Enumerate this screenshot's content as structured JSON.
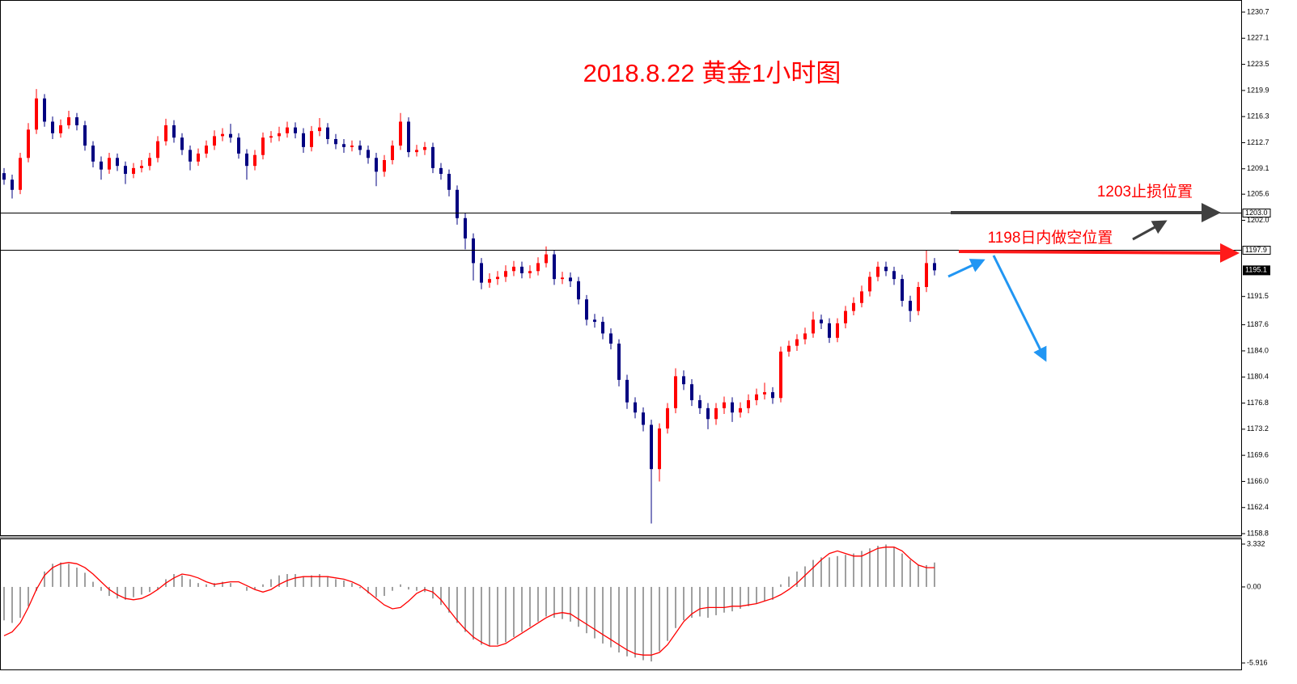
{
  "chart_data": [
    {
      "type": "candlestick",
      "title": "2018.8.22  黄金1小时图",
      "annotations": [
        "1203止损位置",
        "1198日内做空位置"
      ],
      "up_color": "#ff0000",
      "down_color": "#000080",
      "title_color": "#ff0000",
      "ylim": [
        1158.47,
        1232.37
      ],
      "yticks": [
        1230.7,
        1227.1,
        1223.5,
        1219.9,
        1216.3,
        1212.7,
        1209.1,
        1205.6,
        {
          "value": 1202,
          "label": "1202.0"
        },
        1191.5,
        1187.6,
        {
          "value": 1184,
          "label": "1184.0"
        },
        1180.4,
        1176.8,
        1173.2,
        1169.6,
        {
          "value": 1166,
          "label": "1166.0"
        },
        1162.4,
        1158.8
      ],
      "levels": [
        {
          "value": 1203,
          "label": "1203.0"
        },
        {
          "value": 1197.9,
          "label": "1197.9"
        }
      ],
      "current_price": {
        "value": 1195.1,
        "label": "1195.1"
      },
      "open": [
        1208.5,
        1207.6,
        1206.2,
        1210.6,
        1214.5,
        1218.8,
        1215.6,
        1214.0,
        1215.1,
        1216.2,
        1215.1,
        1212.3,
        1210.1,
        1209.0,
        1210.6,
        1209.5,
        1208.4,
        1209.2,
        1209.5,
        1210.6,
        1212.9,
        1215.1,
        1213.4,
        1211.7,
        1210.1,
        1211.2,
        1212.3,
        1213.6,
        1213.9,
        1213.4,
        1211.2,
        1209.5,
        1211.0,
        1213.4,
        1213.6,
        1214.0,
        1214.8,
        1214.0,
        1212.1,
        1214.3,
        1214.8,
        1213.2,
        1212.5,
        1212.1,
        1212.3,
        1211.7,
        1210.6,
        1208.7,
        1210.3,
        1212.3,
        1215.6,
        1211.4,
        1211.7,
        1212.1,
        1209.2,
        1208.4,
        1206.2,
        1202.3,
        1199.5,
        1196.1,
        1193.4,
        1193.9,
        1194.2,
        1195.0,
        1195.6,
        1194.7,
        1195.0,
        1196.1,
        1197.3,
        1193.9,
        1194.1,
        1193.6,
        1191.1,
        1188.3,
        1188.0,
        1186.4,
        1185.0,
        1180.0,
        1176.9,
        1175.5,
        1173.8,
        1167.7,
        1173.3,
        1176.1,
        1180.5,
        1179.4,
        1177.2,
        1176.1,
        1174.6,
        1176.1,
        1176.9,
        1175.5,
        1176.1,
        1177.2,
        1178.0,
        1178.3,
        1177.5,
        1183.9,
        1184.7,
        1185.6,
        1186.4,
        1188.3,
        1187.8,
        1185.8,
        1187.8,
        1189.5,
        1190.6,
        1192.2,
        1194.2,
        1195.6,
        1195.0,
        1193.9,
        1190.9,
        1189.5,
        1192.8,
        1196.1
      ],
      "high": [
        1209.2,
        1208.3,
        1211.3,
        1215.4,
        1220.1,
        1219.4,
        1216.3,
        1215.9,
        1217.1,
        1216.8,
        1215.7,
        1212.9,
        1210.8,
        1211.3,
        1211.2,
        1210.1,
        1209.9,
        1210.3,
        1211.3,
        1213.6,
        1216.0,
        1215.8,
        1214.0,
        1212.3,
        1211.9,
        1213.0,
        1214.4,
        1214.7,
        1215.3,
        1214.0,
        1211.8,
        1211.7,
        1214.1,
        1214.3,
        1214.9,
        1215.6,
        1215.5,
        1214.7,
        1215.0,
        1216.1,
        1215.4,
        1213.9,
        1213.2,
        1213.0,
        1213.0,
        1212.3,
        1211.3,
        1211.0,
        1213.0,
        1216.8,
        1216.2,
        1212.4,
        1212.8,
        1212.7,
        1209.9,
        1209.0,
        1206.8,
        1203.0,
        1200.2,
        1196.8,
        1194.7,
        1195.0,
        1195.8,
        1196.4,
        1196.3,
        1195.8,
        1196.9,
        1198.4,
        1197.9,
        1194.9,
        1194.8,
        1194.2,
        1191.7,
        1189.1,
        1188.7,
        1187.1,
        1185.6,
        1180.7,
        1177.6,
        1176.2,
        1174.5,
        1174.0,
        1176.8,
        1181.6,
        1181.3,
        1180.1,
        1177.9,
        1176.8,
        1176.8,
        1177.7,
        1177.6,
        1176.9,
        1178.0,
        1178.8,
        1179.6,
        1179.0,
        1184.6,
        1185.4,
        1186.3,
        1187.2,
        1189.4,
        1189.0,
        1188.5,
        1188.5,
        1190.2,
        1191.4,
        1193.0,
        1194.9,
        1196.3,
        1196.3,
        1195.6,
        1194.5,
        1191.6,
        1193.5,
        1197.9,
        1196.8
      ],
      "low": [
        1206.9,
        1205.0,
        1205.6,
        1210.0,
        1213.9,
        1214.9,
        1213.2,
        1213.4,
        1214.6,
        1214.4,
        1211.6,
        1209.3,
        1207.6,
        1208.4,
        1208.8,
        1207.0,
        1207.8,
        1208.6,
        1208.9,
        1210.0,
        1212.3,
        1212.7,
        1211.0,
        1208.9,
        1209.5,
        1210.6,
        1211.7,
        1212.9,
        1212.7,
        1210.5,
        1207.6,
        1208.9,
        1210.4,
        1212.7,
        1212.9,
        1213.4,
        1213.3,
        1211.3,
        1211.5,
        1213.6,
        1212.5,
        1211.8,
        1211.3,
        1211.5,
        1211.0,
        1209.8,
        1206.7,
        1208.0,
        1209.7,
        1211.7,
        1210.7,
        1210.8,
        1211.0,
        1208.5,
        1207.6,
        1205.3,
        1201.4,
        1198.0,
        1193.7,
        1192.5,
        1192.7,
        1193.1,
        1193.5,
        1194.3,
        1194.0,
        1194.0,
        1194.4,
        1195.5,
        1193.1,
        1193.2,
        1192.8,
        1190.4,
        1187.5,
        1187.2,
        1185.6,
        1184.2,
        1179.1,
        1176.0,
        1174.7,
        1172.9,
        1160.2,
        1166.0,
        1172.6,
        1175.4,
        1178.6,
        1176.4,
        1175.3,
        1173.2,
        1173.8,
        1175.3,
        1174.2,
        1174.8,
        1175.4,
        1176.5,
        1177.3,
        1176.7,
        1176.9,
        1183.2,
        1184.0,
        1184.9,
        1185.8,
        1187.0,
        1185.1,
        1185.2,
        1187.1,
        1188.9,
        1190.0,
        1191.5,
        1193.6,
        1194.3,
        1193.1,
        1190.1,
        1188.0,
        1188.9,
        1192.1,
        1194.4
      ],
      "close": [
        1207.6,
        1206.2,
        1210.6,
        1214.5,
        1218.8,
        1215.6,
        1214.0,
        1215.1,
        1216.2,
        1215.1,
        1212.3,
        1210.1,
        1209.0,
        1210.6,
        1209.5,
        1208.4,
        1209.2,
        1209.5,
        1210.6,
        1212.9,
        1215.1,
        1213.4,
        1211.7,
        1210.1,
        1211.2,
        1212.3,
        1213.6,
        1213.9,
        1213.4,
        1211.2,
        1209.5,
        1211.0,
        1213.4,
        1213.6,
        1214.0,
        1214.8,
        1214.0,
        1212.1,
        1214.3,
        1214.8,
        1213.2,
        1212.5,
        1212.1,
        1212.3,
        1211.7,
        1210.6,
        1208.7,
        1210.3,
        1212.3,
        1215.6,
        1211.4,
        1211.7,
        1212.1,
        1209.2,
        1208.4,
        1206.2,
        1202.3,
        1199.5,
        1196.1,
        1193.4,
        1193.9,
        1194.2,
        1195.0,
        1195.6,
        1194.7,
        1195.0,
        1196.1,
        1197.3,
        1193.9,
        1194.1,
        1193.6,
        1191.1,
        1188.3,
        1188.0,
        1186.4,
        1185.0,
        1180.0,
        1176.9,
        1175.5,
        1173.8,
        1167.7,
        1173.3,
        1176.1,
        1180.5,
        1179.4,
        1177.2,
        1176.1,
        1174.6,
        1176.1,
        1176.9,
        1175.5,
        1176.1,
        1177.2,
        1178.0,
        1178.3,
        1177.5,
        1183.9,
        1184.7,
        1185.6,
        1186.4,
        1188.3,
        1187.8,
        1185.8,
        1187.8,
        1189.5,
        1190.6,
        1192.2,
        1194.2,
        1195.6,
        1195.0,
        1193.9,
        1190.9,
        1189.5,
        1192.8,
        1196.1,
        1195.1
      ]
    },
    {
      "type": "macd",
      "histogram_color": "#a0a0a0",
      "signal_color": "#ff0000",
      "ylim": [
        -6.42,
        3.77
      ],
      "yticks": [
        3.332,
        {
          "value": 0,
          "label": "0.00"
        },
        -5.916
      ],
      "histogram": [
        -2.6,
        -2.8,
        -2.4,
        -1.5,
        -0.3,
        1.2,
        1.8,
        1.9,
        1.8,
        1.5,
        1.1,
        0.4,
        -0.3,
        -0.7,
        -0.9,
        -1.0,
        -0.8,
        -0.6,
        -0.4,
        -0.2,
        0.6,
        1.0,
        0.9,
        0.6,
        0.3,
        0.2,
        0.3,
        0.4,
        0.3,
        0.0,
        -0.3,
        -0.2,
        0.2,
        0.6,
        0.9,
        1.0,
        1.0,
        0.8,
        0.9,
        1.0,
        0.8,
        0.6,
        0.5,
        0.3,
        -0.1,
        -0.5,
        -0.8,
        -0.7,
        -0.3,
        0.2,
        -0.2,
        -0.3,
        -0.4,
        -0.9,
        -1.4,
        -2.0,
        -2.8,
        -3.5,
        -4.1,
        -4.5,
        -4.6,
        -4.5,
        -4.3,
        -3.9,
        -3.5,
        -3.1,
        -2.7,
        -2.3,
        -2.4,
        -2.5,
        -2.7,
        -3.1,
        -3.6,
        -4.0,
        -4.4,
        -4.7,
        -5.1,
        -5.4,
        -5.5,
        -5.7,
        -5.8,
        -5.0,
        -4.2,
        -3.2,
        -2.6,
        -2.4,
        -2.3,
        -2.4,
        -2.2,
        -2.0,
        -1.9,
        -1.7,
        -1.5,
        -1.3,
        -1.1,
        -1.0,
        0.2,
        0.8,
        1.2,
        1.6,
        2.1,
        2.3,
        2.3,
        2.4,
        2.5,
        2.6,
        2.8,
        3.0,
        3.2,
        3.3,
        3.1,
        2.6,
        2.1,
        1.7,
        1.7,
        1.9
      ],
      "signal": [
        -3.8,
        -3.5,
        -2.8,
        -1.6,
        -0.2,
        0.9,
        1.5,
        1.8,
        1.9,
        1.8,
        1.5,
        1.0,
        0.4,
        -0.2,
        -0.6,
        -0.9,
        -1.0,
        -0.9,
        -0.6,
        -0.2,
        0.3,
        0.7,
        1.0,
        0.9,
        0.7,
        0.4,
        0.2,
        0.3,
        0.4,
        0.4,
        0.1,
        -0.2,
        -0.4,
        -0.2,
        0.2,
        0.5,
        0.7,
        0.8,
        0.8,
        0.8,
        0.8,
        0.7,
        0.6,
        0.4,
        0.1,
        -0.4,
        -0.9,
        -1.4,
        -1.7,
        -1.6,
        -1.1,
        -0.5,
        -0.2,
        -0.4,
        -1.0,
        -1.8,
        -2.6,
        -3.3,
        -3.9,
        -4.3,
        -4.6,
        -4.6,
        -4.4,
        -4.0,
        -3.6,
        -3.2,
        -2.8,
        -2.4,
        -2.1,
        -2.0,
        -2.1,
        -2.5,
        -2.9,
        -3.3,
        -3.7,
        -4.1,
        -4.5,
        -4.9,
        -5.2,
        -5.3,
        -5.3,
        -5.1,
        -4.5,
        -3.6,
        -2.7,
        -2.1,
        -1.7,
        -1.6,
        -1.6,
        -1.6,
        -1.5,
        -1.5,
        -1.4,
        -1.3,
        -1.1,
        -0.9,
        -0.6,
        -0.2,
        0.3,
        0.9,
        1.5,
        2.1,
        2.6,
        2.8,
        2.6,
        2.4,
        2.4,
        2.7,
        3.0,
        3.1,
        3.1,
        2.8,
        2.2,
        1.7,
        1.5,
        1.5
      ]
    }
  ]
}
